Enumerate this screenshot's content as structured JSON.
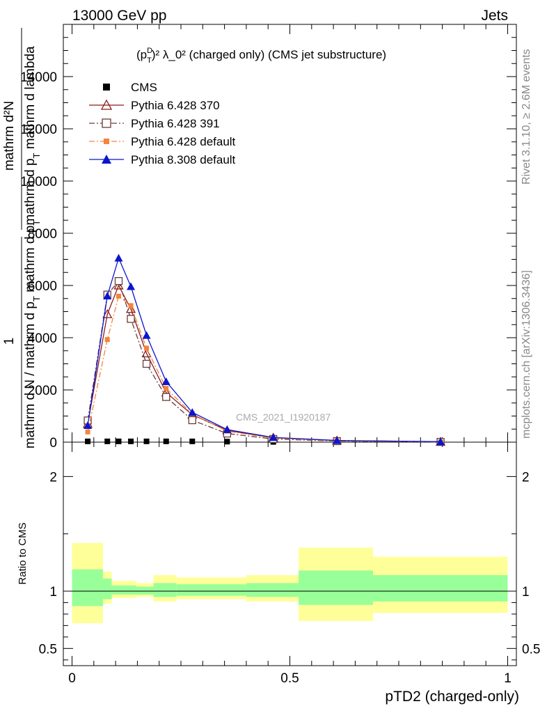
{
  "header": {
    "energy_label": "13000 GeV pp",
    "category_label": "Jets"
  },
  "side": {
    "rivet_label": "Rivet 3.1.10, ≥ 2.6M events",
    "site_label": "mcplots.cern.ch [arXiv:1306.3436]"
  },
  "plot": {
    "title_prefix": "(p",
    "title_sup_d": "D",
    "title_sub_t": "T",
    "title_rest": ")² λ_0² (charged only) (CMS jet substructure)",
    "watermark": "CMS_2021_I1920187",
    "ylabel_top_num": "mathrm d²N",
    "ylabel_top_den": "mathrm d p",
    "ylabel_top_den_sub": "T",
    "ylabel_top_den2": " mathrm d lambda",
    "ylabel_one": "1",
    "ylabel_bottom": "mathrm d N / mathrm d p",
    "ylabel_bottom_sub": "T",
    "ylabel_bottom_end": " mathrm d p",
    "ylabel_bottom_sub2": "T",
    "ratio_ylabel": "Ratio to CMS",
    "xlabel": "pTD2 (charged-only)"
  },
  "colors": {
    "cms": "#000000",
    "p6_370": "#8b1a1a",
    "p6_391": "#6b3a3a",
    "p6_def": "#f5843c",
    "p8_def": "#0b16cc",
    "band_outer": "#ffff99",
    "band_inner": "#99ff99"
  },
  "chart_data": {
    "type": "line",
    "x": [
      0.036,
      0.081,
      0.107,
      0.135,
      0.171,
      0.216,
      0.276,
      0.356,
      0.462,
      0.608,
      0.846
    ],
    "xlim": [
      -0.02,
      1.02
    ],
    "ylim": [
      0,
      16000
    ],
    "y_ticks": [
      0,
      2000,
      4000,
      6000,
      8000,
      10000,
      12000,
      14000
    ],
    "y_tick_labels": [
      "0",
      "2000",
      "4000",
      "6000",
      "8000",
      "10000",
      "12000",
      "14000"
    ],
    "x_ticks": [
      0,
      0.5,
      1
    ],
    "x_tick_labels": [
      "0",
      "0.5",
      "1"
    ],
    "series": [
      {
        "name": "CMS",
        "key": "cms",
        "marker": "square",
        "values": [
          30,
          30,
          30,
          30,
          30,
          30,
          30,
          20,
          10,
          5,
          2
        ]
      },
      {
        "name": "Pythia 6.428 370",
        "key": "p6_370",
        "marker": "open-triangle",
        "dash": "",
        "values": [
          700,
          4900,
          6000,
          5100,
          3400,
          1900,
          1050,
          450,
          170,
          60,
          15
        ]
      },
      {
        "name": "Pythia 6.428 391",
        "key": "p6_391",
        "marker": "open-square",
        "dash": "8 3 2 3",
        "values": [
          830,
          5650,
          6170,
          4720,
          3000,
          1730,
          840,
          330,
          120,
          40,
          10
        ]
      },
      {
        "name": "Pythia 6.428 default",
        "key": "p6_def",
        "marker": "square",
        "dash": "8 3 2 3",
        "values": [
          390,
          3930,
          5590,
          5230,
          3600,
          2060,
          1080,
          420,
          150,
          50,
          12
        ]
      },
      {
        "name": "Pythia 8.308 default",
        "key": "p8_def",
        "marker": "triangle",
        "dash": "",
        "values": [
          640,
          5600,
          7050,
          5960,
          4090,
          2320,
          1140,
          480,
          180,
          65,
          18
        ]
      }
    ],
    "ratio": {
      "ylim": [
        0.35,
        2.3
      ],
      "y_ticks": [
        0.5,
        1,
        2
      ],
      "y_tick_labels": [
        "0.5",
        "1",
        "2"
      ],
      "bins": [
        {
          "x0": 0.0,
          "x1": 0.071,
          "lo2": 0.72,
          "hi2": 1.42,
          "lo1": 0.87,
          "hi1": 1.19
        },
        {
          "x0": 0.071,
          "x1": 0.091,
          "lo2": 0.89,
          "hi2": 1.17,
          "lo1": 0.93,
          "hi1": 1.11
        },
        {
          "x0": 0.091,
          "x1": 0.147,
          "lo2": 0.94,
          "hi2": 1.09,
          "lo1": 0.97,
          "hi1": 1.05
        },
        {
          "x0": 0.147,
          "x1": 0.187,
          "lo2": 0.95,
          "hi2": 1.07,
          "lo1": 0.97,
          "hi1": 1.04
        },
        {
          "x0": 0.187,
          "x1": 0.24,
          "lo2": 0.91,
          "hi2": 1.14,
          "lo1": 0.95,
          "hi1": 1.07
        },
        {
          "x0": 0.24,
          "x1": 0.4,
          "lo2": 0.93,
          "hi2": 1.12,
          "lo1": 0.96,
          "hi1": 1.06
        },
        {
          "x0": 0.4,
          "x1": 0.52,
          "lo2": 0.91,
          "hi2": 1.14,
          "lo1": 0.95,
          "hi1": 1.07
        },
        {
          "x0": 0.52,
          "x1": 0.691,
          "lo2": 0.74,
          "hi2": 1.38,
          "lo1": 0.88,
          "hi1": 1.18
        },
        {
          "x0": 0.691,
          "x1": 1.0,
          "lo2": 0.81,
          "hi2": 1.3,
          "lo1": 0.91,
          "hi1": 1.14
        }
      ]
    }
  }
}
